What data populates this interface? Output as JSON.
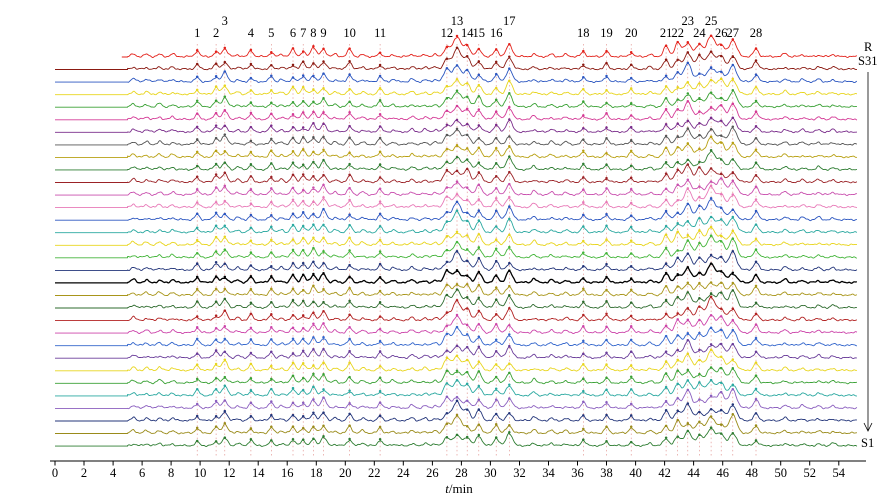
{
  "chart_data": {
    "type": "line",
    "subtype": "stacked-chromatogram-fingerprints",
    "title": "",
    "xlabel_italic": "t",
    "xlabel_unit": "/min",
    "x_ticks": [
      0,
      2,
      4,
      6,
      8,
      10,
      12,
      14,
      16,
      18,
      20,
      22,
      24,
      26,
      28,
      30,
      32,
      34,
      36,
      38,
      40,
      42,
      44,
      46,
      48,
      50,
      52,
      54
    ],
    "xlim": [
      0,
      55.6
    ],
    "n_traces": 32,
    "reference_label": "R",
    "top_sample_label": "S31",
    "bottom_sample_label": "S1",
    "signal_start_min": 5.0,
    "peaks": [
      {
        "n": "1",
        "t": 9.8,
        "h": 4,
        "raised": false
      },
      {
        "n": "2",
        "t": 11.1,
        "h": 5,
        "raised": false
      },
      {
        "n": "3",
        "t": 11.7,
        "h": 7,
        "raised": true
      },
      {
        "n": "4",
        "t": 13.5,
        "h": 4,
        "raised": false
      },
      {
        "n": "5",
        "t": 14.9,
        "h": 4,
        "raised": false
      },
      {
        "n": "6",
        "t": 16.4,
        "h": 5,
        "raised": false
      },
      {
        "n": "7",
        "t": 17.1,
        "h": 5,
        "raised": false
      },
      {
        "n": "8",
        "t": 17.8,
        "h": 6,
        "raised": false
      },
      {
        "n": "9",
        "t": 18.5,
        "h": 7,
        "raised": false
      },
      {
        "n": "10",
        "t": 20.3,
        "h": 5,
        "raised": false
      },
      {
        "n": "11",
        "t": 22.4,
        "h": 4,
        "raised": false
      },
      {
        "n": "12",
        "t": 27.0,
        "h": 9,
        "raised": false
      },
      {
        "n": "13",
        "t": 27.7,
        "h": 15,
        "raised": true
      },
      {
        "n": "14",
        "t": 28.4,
        "h": 9,
        "raised": false
      },
      {
        "n": "15",
        "t": 29.2,
        "h": 8,
        "raised": false
      },
      {
        "n": "16",
        "t": 30.4,
        "h": 6,
        "raised": false
      },
      {
        "n": "17",
        "t": 31.3,
        "h": 9,
        "raised": true
      },
      {
        "n": "18",
        "t": 36.4,
        "h": 4,
        "raised": false
      },
      {
        "n": "19",
        "t": 38.0,
        "h": 4,
        "raised": false
      },
      {
        "n": "20",
        "t": 39.7,
        "h": 4,
        "raised": false
      },
      {
        "n": "21",
        "t": 42.1,
        "h": 7,
        "raised": false
      },
      {
        "n": "22",
        "t": 42.9,
        "h": 9,
        "raised": false
      },
      {
        "n": "23",
        "t": 43.6,
        "h": 13,
        "raised": true
      },
      {
        "n": "24",
        "t": 44.4,
        "h": 10,
        "raised": false
      },
      {
        "n": "25",
        "t": 45.2,
        "h": 16,
        "raised": true
      },
      {
        "n": "26",
        "t": 45.9,
        "h": 11,
        "raised": false
      },
      {
        "n": "27",
        "t": 46.7,
        "h": 13,
        "raised": false
      },
      {
        "n": "28",
        "t": 48.3,
        "h": 6,
        "raised": false
      }
    ],
    "minor_bumps": [
      {
        "t": 5.4,
        "h": 2.5
      },
      {
        "t": 6.3,
        "h": 2
      },
      {
        "t": 7.2,
        "h": 2.5
      },
      {
        "t": 8.1,
        "h": 2
      },
      {
        "t": 12.6,
        "h": 2
      },
      {
        "t": 15.6,
        "h": 2
      },
      {
        "t": 19.3,
        "h": 2
      },
      {
        "t": 21.2,
        "h": 2
      },
      {
        "t": 23.3,
        "h": 2
      },
      {
        "t": 24.6,
        "h": 2.5
      },
      {
        "t": 25.5,
        "h": 2
      },
      {
        "t": 26.2,
        "h": 2
      },
      {
        "t": 33.0,
        "h": 3
      },
      {
        "t": 34.2,
        "h": 2.5
      },
      {
        "t": 35.2,
        "h": 2
      },
      {
        "t": 41.0,
        "h": 2
      },
      {
        "t": 50.3,
        "h": 2.5
      },
      {
        "t": 51.5,
        "h": 2
      },
      {
        "t": 52.6,
        "h": 2
      },
      {
        "t": 53.6,
        "h": 2
      }
    ],
    "trace_colors": [
      "#e3211a",
      "#8b1a12",
      "#2b56c0",
      "#e8d51f",
      "#3aa135",
      "#d43a96",
      "#7a2d8b",
      "#555555",
      "#b8a012",
      "#2e7d32",
      "#9b2226",
      "#c94fae",
      "#e87ab8",
      "#2b56c0",
      "#2aa8a0",
      "#e8d51f",
      "#44b53a",
      "#23357a",
      "#000000",
      "#a8951a",
      "#2e6b2e",
      "#b22222",
      "#cc44aa",
      "#3366cc",
      "#6a3d9a",
      "#e8d51f",
      "#3aa135",
      "#2aa8a0",
      "#8b5fbf",
      "#23357a",
      "#9a8b1a",
      "#2e7d32"
    ],
    "guide_line_color": "#d4605a",
    "axis_color": "#000000"
  }
}
